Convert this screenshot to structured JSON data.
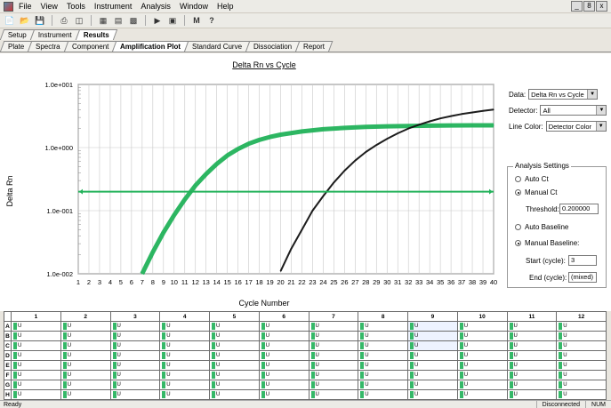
{
  "menubar": {
    "items": [
      "File",
      "View",
      "Tools",
      "Instrument",
      "Analysis",
      "Window",
      "Help"
    ],
    "window_controls": [
      "_",
      "8",
      "x"
    ]
  },
  "toolbar": {
    "icons": [
      "new-file-icon",
      "open-folder-icon",
      "save-icon",
      "print-icon",
      "print-preview-icon",
      "data-icon",
      "export-icon",
      "table-icon",
      "play-icon",
      "stop-icon",
      "find-icon",
      "help-icon"
    ]
  },
  "tabs_top": [
    "Setup",
    "Instrument",
    "Results"
  ],
  "tabs_results": [
    "Plate",
    "Spectra",
    "Component",
    "Amplification Plot",
    "Standard Curve",
    "Dissociation",
    "Report"
  ],
  "active_top_tab": "Results",
  "active_results_tab": "Amplification Plot",
  "chart_data": {
    "type": "line",
    "title": "Delta Rn vs Cycle",
    "xlabel": "Cycle Number",
    "ylabel": "Delta Rn",
    "yscale": "log",
    "ylim": [
      0.01,
      10
    ],
    "xlim": [
      1,
      40
    ],
    "y_tick_labels": [
      "1.0e+001",
      "1.0e+000",
      "1.0e-001",
      "1.0e-002"
    ],
    "y_ticks": [
      10,
      1,
      0.1,
      0.01
    ],
    "x_ticks": [
      1,
      2,
      3,
      4,
      5,
      6,
      7,
      8,
      9,
      10,
      11,
      12,
      13,
      14,
      15,
      16,
      17,
      18,
      19,
      20,
      21,
      22,
      23,
      24,
      25,
      26,
      27,
      28,
      29,
      30,
      31,
      32,
      33,
      34,
      35,
      36,
      37,
      38,
      39,
      40
    ],
    "grid": true,
    "threshold": 0.2,
    "series": [
      {
        "color": "#22b25a",
        "x": [
          7,
          8,
          9,
          10,
          11,
          12,
          13,
          14,
          15,
          16,
          17,
          18,
          19,
          20,
          22,
          24,
          26,
          28,
          30,
          32,
          34,
          36,
          38,
          40
        ],
        "y": [
          0.01,
          0.022,
          0.045,
          0.085,
          0.15,
          0.25,
          0.38,
          0.55,
          0.75,
          0.95,
          1.15,
          1.32,
          1.47,
          1.6,
          1.8,
          1.95,
          2.05,
          2.12,
          2.17,
          2.2,
          2.22,
          2.24,
          2.25,
          2.25
        ]
      },
      {
        "color": "#111111",
        "x": [
          20,
          21,
          22,
          23,
          24,
          25,
          26,
          27,
          28,
          29,
          30,
          31,
          32,
          33,
          34,
          35,
          36,
          37,
          38,
          39,
          40
        ],
        "y": [
          0.011,
          0.025,
          0.05,
          0.1,
          0.17,
          0.28,
          0.43,
          0.62,
          0.85,
          1.1,
          1.38,
          1.68,
          2.0,
          2.3,
          2.6,
          2.9,
          3.15,
          3.4,
          3.6,
          3.8,
          4.0
        ]
      }
    ]
  },
  "side": {
    "data_label": "Data:",
    "data_value": "Delta Rn vs Cycle",
    "detector_label": "Detector:",
    "detector_value": "All",
    "linecolor_label": "Line Color:",
    "linecolor_value": "Detector Color",
    "settings_title": "Analysis Settings",
    "auto_ct": "Auto Ct",
    "manual_ct": "Manual Ct",
    "threshold_label": "Threshold:",
    "threshold_value": "0.200000",
    "auto_baseline": "Auto Baseline",
    "manual_baseline": "Manual Baseline:",
    "start_label": "Start (cycle):",
    "start_value": "3",
    "end_label": "End (cycle):",
    "end_value": "(mixed)"
  },
  "plate": {
    "columns": [
      "1",
      "2",
      "3",
      "4",
      "5",
      "6",
      "7",
      "8",
      "9",
      "10",
      "11",
      "12"
    ],
    "rows": [
      "A",
      "B",
      "C",
      "D",
      "E",
      "F",
      "G",
      "H"
    ],
    "well_label": "U"
  },
  "status": {
    "left": "Ready",
    "connection": "Disconnected",
    "mode": "NUM"
  }
}
